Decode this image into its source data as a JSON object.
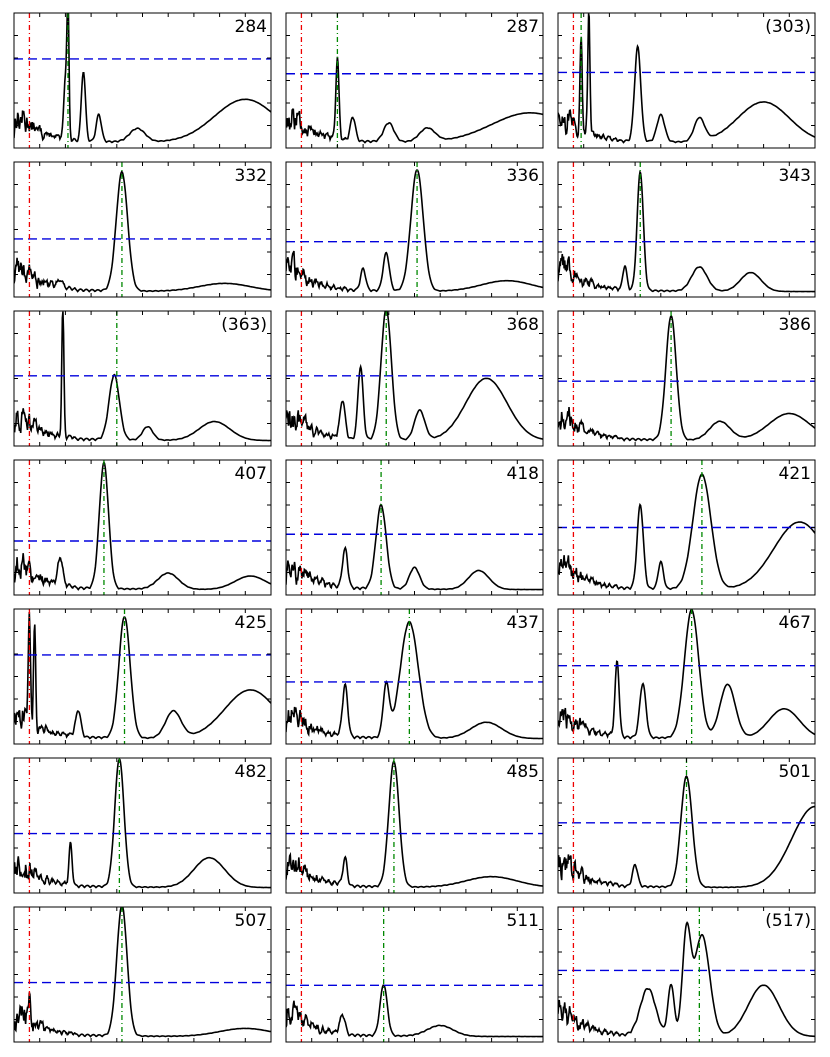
{
  "chart_data": {
    "type": "line",
    "grid": false,
    "layout": "7x3",
    "colors": {
      "curve": "#000000",
      "threshold": "#0000dd",
      "red_marker": "#ee0000",
      "green_marker": "#008800"
    },
    "panels": [
      {
        "label": "284",
        "threshold": 0.66,
        "red_x": 0.06,
        "green_x": 0.21,
        "peaks": [
          [
            0.2,
            0.45,
            0.006
          ],
          [
            0.21,
            0.97,
            0.004
          ],
          [
            0.27,
            0.52,
            0.008
          ],
          [
            0.33,
            0.2,
            0.01
          ],
          [
            0.48,
            0.1,
            0.03
          ],
          [
            0.9,
            0.32,
            0.12
          ]
        ]
      },
      {
        "label": "287",
        "threshold": 0.55,
        "red_x": 0.06,
        "green_x": 0.2,
        "peaks": [
          [
            0.2,
            0.6,
            0.006
          ],
          [
            0.26,
            0.18,
            0.01
          ],
          [
            0.4,
            0.14,
            0.02
          ],
          [
            0.55,
            0.1,
            0.03
          ],
          [
            0.95,
            0.22,
            0.15
          ]
        ]
      },
      {
        "label": "(303)",
        "threshold": 0.56,
        "red_x": 0.06,
        "green_x": 0.09,
        "peaks": [
          [
            0.09,
            0.72,
            0.004
          ],
          [
            0.12,
            0.95,
            0.004
          ],
          [
            0.31,
            0.7,
            0.012
          ],
          [
            0.4,
            0.2,
            0.015
          ],
          [
            0.55,
            0.17,
            0.02
          ],
          [
            0.8,
            0.3,
            0.1
          ]
        ]
      },
      {
        "label": "332",
        "threshold": 0.43,
        "red_x": 0.06,
        "green_x": 0.42,
        "peaks": [
          [
            0.42,
            0.88,
            0.022
          ],
          [
            0.18,
            0.06,
            0.01
          ],
          [
            0.82,
            0.06,
            0.1
          ]
        ]
      },
      {
        "label": "336",
        "threshold": 0.41,
        "red_x": 0.06,
        "green_x": 0.51,
        "peaks": [
          [
            0.51,
            0.9,
            0.024
          ],
          [
            0.3,
            0.16,
            0.01
          ],
          [
            0.39,
            0.28,
            0.012
          ],
          [
            0.86,
            0.08,
            0.1
          ]
        ]
      },
      {
        "label": "343",
        "threshold": 0.41,
        "red_x": 0.06,
        "green_x": 0.32,
        "peaks": [
          [
            0.32,
            0.88,
            0.012
          ],
          [
            0.26,
            0.18,
            0.008
          ],
          [
            0.55,
            0.18,
            0.03
          ],
          [
            0.75,
            0.14,
            0.04
          ]
        ]
      },
      {
        "label": "(363)",
        "threshold": 0.52,
        "red_x": 0.06,
        "green_x": 0.4,
        "peaks": [
          [
            0.19,
            0.98,
            0.004
          ],
          [
            0.39,
            0.48,
            0.02
          ],
          [
            0.52,
            0.1,
            0.02
          ],
          [
            0.78,
            0.14,
            0.06
          ]
        ]
      },
      {
        "label": "368",
        "threshold": 0.52,
        "red_x": 0.06,
        "green_x": 0.39,
        "peaks": [
          [
            0.39,
            0.97,
            0.02
          ],
          [
            0.29,
            0.54,
            0.01
          ],
          [
            0.22,
            0.28,
            0.01
          ],
          [
            0.52,
            0.22,
            0.02
          ],
          [
            0.78,
            0.46,
            0.08
          ]
        ]
      },
      {
        "label": "386",
        "threshold": 0.48,
        "red_x": 0.06,
        "green_x": 0.44,
        "peaks": [
          [
            0.44,
            0.92,
            0.02
          ],
          [
            0.63,
            0.14,
            0.04
          ],
          [
            0.9,
            0.2,
            0.08
          ]
        ]
      },
      {
        "label": "407",
        "threshold": 0.4,
        "red_x": 0.06,
        "green_x": 0.35,
        "peaks": [
          [
            0.35,
            0.93,
            0.018
          ],
          [
            0.18,
            0.2,
            0.01
          ],
          [
            0.6,
            0.12,
            0.04
          ],
          [
            0.92,
            0.1,
            0.06
          ]
        ]
      },
      {
        "label": "418",
        "threshold": 0.45,
        "red_x": 0.06,
        "green_x": 0.37,
        "peaks": [
          [
            0.37,
            0.62,
            0.02
          ],
          [
            0.23,
            0.28,
            0.01
          ],
          [
            0.5,
            0.16,
            0.02
          ],
          [
            0.75,
            0.14,
            0.04
          ]
        ]
      },
      {
        "label": "421",
        "threshold": 0.5,
        "red_x": 0.06,
        "green_x": 0.56,
        "peaks": [
          [
            0.56,
            0.85,
            0.035
          ],
          [
            0.32,
            0.62,
            0.012
          ],
          [
            0.4,
            0.2,
            0.01
          ],
          [
            0.94,
            0.5,
            0.1
          ]
        ]
      },
      {
        "label": "425",
        "threshold": 0.66,
        "red_x": 0.06,
        "green_x": 0.43,
        "peaks": [
          [
            0.43,
            0.9,
            0.022
          ],
          [
            0.06,
            0.72,
            0.004
          ],
          [
            0.08,
            0.7,
            0.004
          ],
          [
            0.25,
            0.2,
            0.01
          ],
          [
            0.62,
            0.2,
            0.03
          ],
          [
            0.92,
            0.36,
            0.1
          ]
        ]
      },
      {
        "label": "437",
        "threshold": 0.46,
        "red_x": 0.06,
        "green_x": 0.48,
        "peaks": [
          [
            0.48,
            0.86,
            0.035
          ],
          [
            0.23,
            0.38,
            0.01
          ],
          [
            0.39,
            0.38,
            0.012
          ],
          [
            0.78,
            0.12,
            0.06
          ]
        ]
      },
      {
        "label": "467",
        "threshold": 0.58,
        "red_x": 0.06,
        "green_x": 0.52,
        "peaks": [
          [
            0.52,
            0.95,
            0.028
          ],
          [
            0.23,
            0.55,
            0.008
          ],
          [
            0.33,
            0.4,
            0.012
          ],
          [
            0.66,
            0.4,
            0.03
          ],
          [
            0.88,
            0.22,
            0.06
          ]
        ]
      },
      {
        "label": "482",
        "threshold": 0.44,
        "red_x": 0.06,
        "green_x": 0.41,
        "peaks": [
          [
            0.41,
            0.95,
            0.018
          ],
          [
            0.22,
            0.3,
            0.006
          ],
          [
            0.76,
            0.22,
            0.06
          ]
        ]
      },
      {
        "label": "485",
        "threshold": 0.44,
        "red_x": 0.06,
        "green_x": 0.42,
        "peaks": [
          [
            0.42,
            0.93,
            0.02
          ],
          [
            0.23,
            0.2,
            0.008
          ],
          [
            0.8,
            0.08,
            0.1
          ]
        ]
      },
      {
        "label": "501",
        "threshold": 0.52,
        "red_x": 0.06,
        "green_x": 0.5,
        "peaks": [
          [
            0.5,
            0.82,
            0.022
          ],
          [
            0.3,
            0.16,
            0.01
          ],
          [
            1.0,
            0.6,
            0.09
          ]
        ]
      },
      {
        "label": "507",
        "threshold": 0.44,
        "red_x": 0.06,
        "green_x": 0.42,
        "peaks": [
          [
            0.42,
            0.97,
            0.02
          ],
          [
            0.06,
            0.18,
            0.004
          ],
          [
            0.9,
            0.06,
            0.1
          ]
        ]
      },
      {
        "label": "511",
        "threshold": 0.42,
        "red_x": 0.06,
        "green_x": 0.38,
        "peaks": [
          [
            0.38,
            0.38,
            0.014
          ],
          [
            0.22,
            0.14,
            0.01
          ],
          [
            0.6,
            0.08,
            0.05
          ]
        ]
      },
      {
        "label": "(517)",
        "threshold": 0.53,
        "red_x": 0.06,
        "green_x": 0.55,
        "peaks": [
          [
            0.5,
            0.73,
            0.016
          ],
          [
            0.56,
            0.75,
            0.03
          ],
          [
            0.44,
            0.38,
            0.012
          ],
          [
            0.35,
            0.35,
            0.03
          ],
          [
            0.8,
            0.38,
            0.06
          ]
        ]
      }
    ]
  }
}
